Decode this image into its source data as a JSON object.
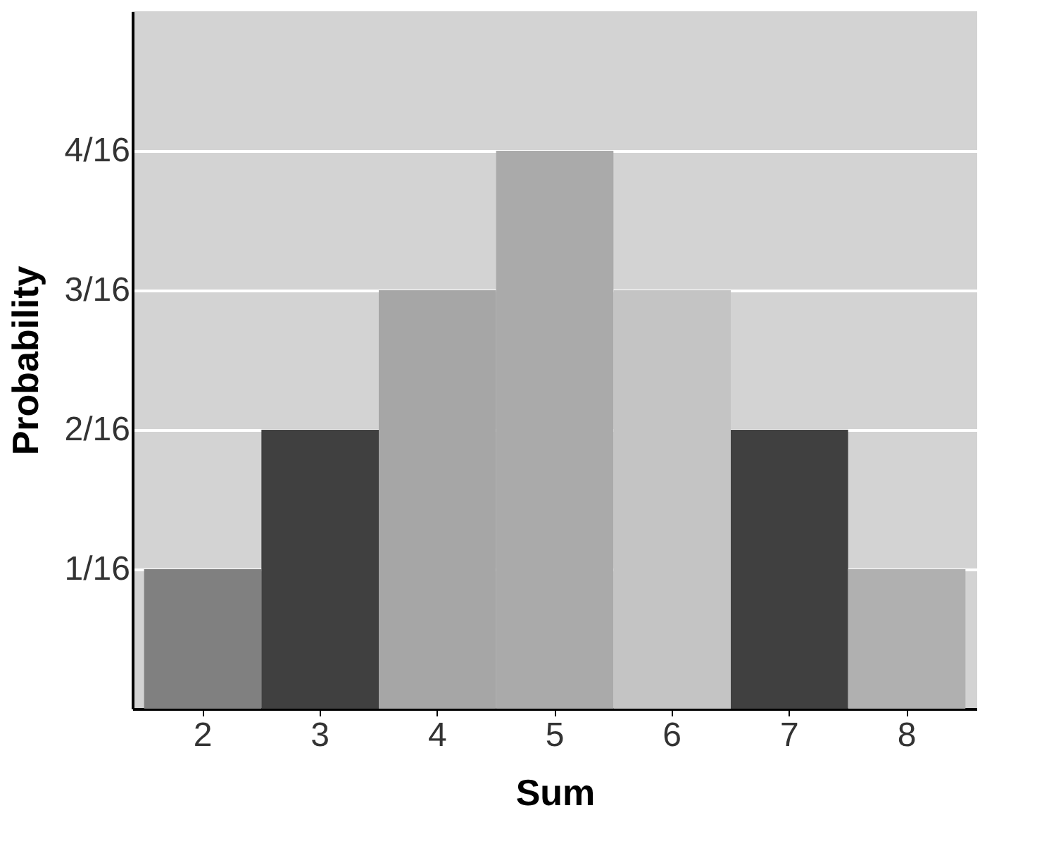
{
  "chart_data": {
    "type": "bar",
    "xlabel": "Sum",
    "ylabel": "Probability",
    "categories": [
      "2",
      "3",
      "4",
      "5",
      "6",
      "7",
      "8"
    ],
    "values": [
      0.0625,
      0.125,
      0.1875,
      0.25,
      0.1875,
      0.125,
      0.0625
    ],
    "colors": [
      "#808080",
      "#404040",
      "#a6a6a6",
      "#aaaaaa",
      "#c4c4c4",
      "#404040",
      "#b0b0b0"
    ],
    "ylim": [
      0,
      0.3125
    ],
    "yticks": [
      {
        "value": 0.0625,
        "label": "1/16"
      },
      {
        "value": 0.125,
        "label": "2/16"
      },
      {
        "value": 0.1875,
        "label": "3/16"
      },
      {
        "value": 0.25,
        "label": "4/16"
      }
    ],
    "grid": "y"
  }
}
